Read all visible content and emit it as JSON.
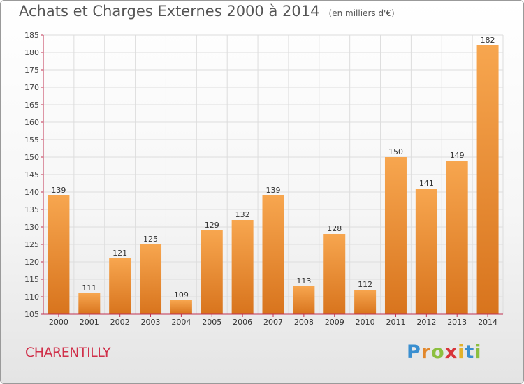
{
  "header": {
    "title": "Achats et Charges Externes 2000 à 2014",
    "unit": "(en milliers d'€)"
  },
  "footer": {
    "commune": "CHARENTILLY",
    "logo_text": "Proxiti"
  },
  "colors": {
    "bar_light": "#f7a64f",
    "bar_dark": "#d8741d",
    "grid": "#dddddd",
    "axis": "#c03050",
    "commune_text": "#d0304a"
  },
  "chart_data": {
    "type": "bar",
    "title": "Achats et Charges Externes 2000 à 2014",
    "subtitle": "(en milliers d'€)",
    "categories": [
      "2000",
      "2001",
      "2002",
      "2003",
      "2004",
      "2005",
      "2006",
      "2007",
      "2008",
      "2009",
      "2010",
      "2011",
      "2012",
      "2013",
      "2014"
    ],
    "values": [
      139,
      111,
      121,
      125,
      109,
      129,
      132,
      139,
      113,
      128,
      112,
      150,
      141,
      149,
      182
    ],
    "ylim": [
      105,
      185
    ],
    "yticks": [
      105,
      110,
      115,
      120,
      125,
      130,
      135,
      140,
      145,
      150,
      155,
      160,
      165,
      170,
      175,
      180,
      185
    ],
    "grid": true,
    "data_labels": true
  }
}
